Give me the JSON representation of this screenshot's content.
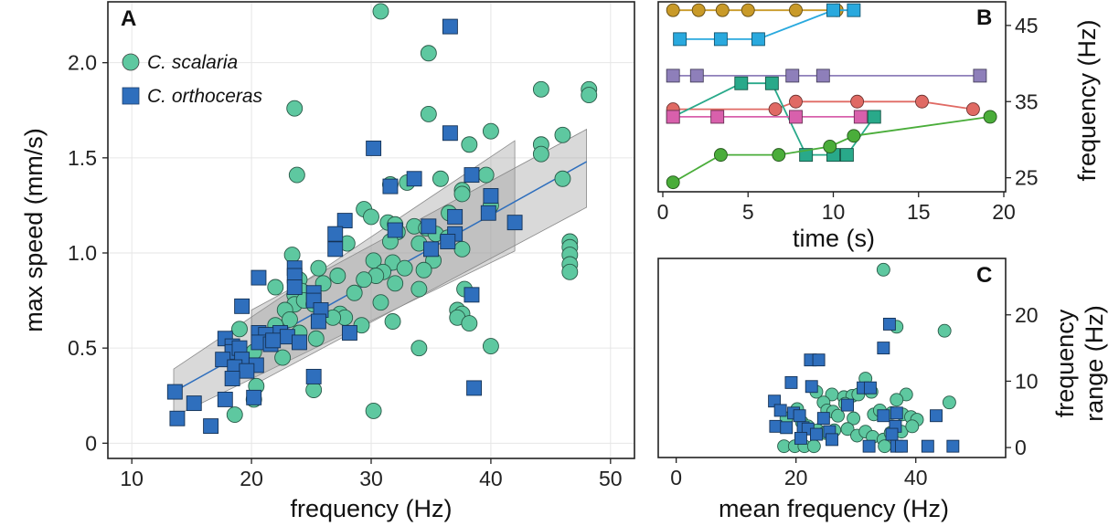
{
  "chart_data": [
    {
      "panel": "A",
      "type": "scatter",
      "xlabel": "frequency (Hz)",
      "ylabel": "max speed (mm/s)",
      "xlim": [
        8,
        52
      ],
      "ylim": [
        -0.08,
        2.32
      ],
      "xticks": [
        10,
        20,
        30,
        40,
        50
      ],
      "yticks": [
        0,
        0.5,
        1.0,
        1.5,
        2.0
      ],
      "ytick_labels": [
        "0",
        "0.5",
        "1.0",
        "1.5",
        "2.0"
      ],
      "legend_position": "top-left",
      "colors": {
        "scalaria": "#5ec8a0",
        "orthoceras": "#2f6fbd",
        "fit": "#2f6fbd",
        "band": "#9a9a9a"
      },
      "series": [
        {
          "name": "C. scalaria",
          "marker": "circle",
          "color": "#5ec8a0",
          "points": [
            [
              30.8,
              2.27
            ],
            [
              34.8,
              2.05
            ],
            [
              44.2,
              1.86
            ],
            [
              48.2,
              1.86
            ],
            [
              48.2,
              1.83
            ],
            [
              23.6,
              1.76
            ],
            [
              34.8,
              1.73
            ],
            [
              40.0,
              1.64
            ],
            [
              46.0,
              1.62
            ],
            [
              44.2,
              1.57
            ],
            [
              38.2,
              1.57
            ],
            [
              44.2,
              1.52
            ],
            [
              23.8,
              1.41
            ],
            [
              39.6,
              1.41
            ],
            [
              46.0,
              1.39
            ],
            [
              35.8,
              1.39
            ],
            [
              33.0,
              1.37
            ],
            [
              31.6,
              1.36
            ],
            [
              37.6,
              1.33
            ],
            [
              37.6,
              1.31
            ],
            [
              40.0,
              1.25
            ],
            [
              29.4,
              1.23
            ],
            [
              36.5,
              1.21
            ],
            [
              30.0,
              1.19
            ],
            [
              31.4,
              1.16
            ],
            [
              32.0,
              1.15
            ],
            [
              33.6,
              1.14
            ],
            [
              34.6,
              1.13
            ],
            [
              32.2,
              1.11
            ],
            [
              35.4,
              1.1
            ],
            [
              36.4,
              1.08
            ],
            [
              31.6,
              1.06
            ],
            [
              34.0,
              1.05
            ],
            [
              28.0,
              1.05
            ],
            [
              46.6,
              1.06
            ],
            [
              46.6,
              1.03
            ],
            [
              37.6,
              1.02
            ],
            [
              23.4,
              0.99
            ],
            [
              46.6,
              0.99
            ],
            [
              30.2,
              0.96
            ],
            [
              35.2,
              0.96
            ],
            [
              31.8,
              0.95
            ],
            [
              46.6,
              0.94
            ],
            [
              25.6,
              0.92
            ],
            [
              34.4,
              0.91
            ],
            [
              32.8,
              0.92
            ],
            [
              31.0,
              0.9
            ],
            [
              27.2,
              0.88
            ],
            [
              30.4,
              0.88
            ],
            [
              46.6,
              0.9
            ],
            [
              24.0,
              0.86
            ],
            [
              29.4,
              0.86
            ],
            [
              32.0,
              0.84
            ],
            [
              22.0,
              0.82
            ],
            [
              26.0,
              0.84
            ],
            [
              24.2,
              0.8
            ],
            [
              23.6,
              0.78
            ],
            [
              37.8,
              0.81
            ],
            [
              34.0,
              0.81
            ],
            [
              28.6,
              0.79
            ],
            [
              23.6,
              0.73
            ],
            [
              24.4,
              0.75
            ],
            [
              25.2,
              0.73
            ],
            [
              30.8,
              0.74
            ],
            [
              22.8,
              0.7
            ],
            [
              27.4,
              0.68
            ],
            [
              27.8,
              0.66
            ],
            [
              37.2,
              0.7
            ],
            [
              37.6,
              0.68
            ],
            [
              26.8,
              0.66
            ],
            [
              23.2,
              0.65
            ],
            [
              31.8,
              0.64
            ],
            [
              37.2,
              0.66
            ],
            [
              38.2,
              0.63
            ],
            [
              29.2,
              0.62
            ],
            [
              22.0,
              0.62
            ],
            [
              19.0,
              0.6
            ],
            [
              24.0,
              0.58
            ],
            [
              25.4,
              0.55
            ],
            [
              22.6,
              0.45
            ],
            [
              40.0,
              0.51
            ],
            [
              34.0,
              0.5
            ],
            [
              20.2,
              0.48
            ],
            [
              20.4,
              0.3
            ],
            [
              25.2,
              0.28
            ],
            [
              20.2,
              0.23
            ],
            [
              18.6,
              0.15
            ],
            [
              30.2,
              0.17
            ]
          ]
        },
        {
          "name": "C. orthoceras",
          "marker": "square",
          "color": "#2f6fbd",
          "points": [
            [
              36.6,
              2.19
            ],
            [
              36.6,
              1.63
            ],
            [
              30.2,
              1.55
            ],
            [
              38.4,
              1.41
            ],
            [
              31.6,
              1.35
            ],
            [
              33.6,
              1.39
            ],
            [
              40.0,
              1.3
            ],
            [
              39.8,
              1.21
            ],
            [
              27.8,
              1.17
            ],
            [
              32.0,
              1.12
            ],
            [
              37.0,
              1.19
            ],
            [
              34.8,
              1.14
            ],
            [
              37.0,
              1.1
            ],
            [
              36.4,
              1.06
            ],
            [
              42.0,
              1.16
            ],
            [
              27.0,
              1.1
            ],
            [
              35.0,
              1.02
            ],
            [
              27.0,
              1.02
            ],
            [
              23.6,
              0.92
            ],
            [
              23.6,
              0.88
            ],
            [
              20.6,
              0.87
            ],
            [
              23.6,
              0.82
            ],
            [
              25.2,
              0.79
            ],
            [
              38.4,
              0.78
            ],
            [
              25.2,
              0.75
            ],
            [
              19.2,
              0.72
            ],
            [
              25.8,
              0.7
            ],
            [
              25.6,
              0.64
            ],
            [
              20.6,
              0.58
            ],
            [
              22.4,
              0.58
            ],
            [
              21.2,
              0.57
            ],
            [
              23.0,
              0.56
            ],
            [
              28.2,
              0.58
            ],
            [
              17.8,
              0.55
            ],
            [
              20.6,
              0.53
            ],
            [
              21.6,
              0.52
            ],
            [
              21.8,
              0.54
            ],
            [
              24.0,
              0.53
            ],
            [
              18.4,
              0.51
            ],
            [
              18.4,
              0.48
            ],
            [
              19.0,
              0.5
            ],
            [
              17.6,
              0.44
            ],
            [
              19.2,
              0.44
            ],
            [
              18.6,
              0.4
            ],
            [
              20.4,
              0.41
            ],
            [
              19.6,
              0.38
            ],
            [
              18.4,
              0.34
            ],
            [
              25.2,
              0.35
            ],
            [
              17.8,
              0.23
            ],
            [
              20.2,
              0.24
            ],
            [
              13.6,
              0.27
            ],
            [
              15.2,
              0.21
            ],
            [
              38.6,
              0.29
            ],
            [
              13.8,
              0.13
            ],
            [
              16.6,
              0.09
            ]
          ]
        }
      ],
      "fit": {
        "x": [
          13.5,
          48.0
        ],
        "y": [
          0.27,
          1.48
        ]
      },
      "bands": [
        {
          "x0": 13.5,
          "x1": 42.0,
          "lo0": 0.14,
          "lo1": 1.01,
          "hi0": 0.39,
          "hi1": 1.59
        },
        {
          "x0": 20.0,
          "x1": 48.0,
          "lo0": 0.3,
          "lo1": 1.24,
          "hi0": 0.7,
          "hi1": 1.65
        }
      ]
    },
    {
      "panel": "B",
      "type": "line",
      "xlabel": "time (s)",
      "ylabel": "frequency (Hz)",
      "xlim": [
        0,
        20
      ],
      "ylim": [
        23.4,
        48.1
      ],
      "xticks": [
        0,
        5,
        10,
        15,
        20
      ],
      "yticks": [
        25,
        35,
        45
      ],
      "series": [
        {
          "name": "s1",
          "marker": "circle",
          "color": "#c99a28",
          "x": [
            0.6,
            2.1,
            3.5,
            5.0,
            7.8,
            10.2
          ],
          "y": [
            47,
            47,
            47,
            47,
            47,
            47
          ]
        },
        {
          "name": "s2",
          "marker": "square",
          "color": "#29a9de",
          "x": [
            1.0,
            3.4,
            5.6,
            10.0,
            11.2
          ],
          "y": [
            43.2,
            43.2,
            43.2,
            47,
            47
          ]
        },
        {
          "name": "s3",
          "marker": "square",
          "color": "#8e7fba",
          "x": [
            0.6,
            2.0,
            7.6,
            9.4,
            18.6
          ],
          "y": [
            38.4,
            38.4,
            38.4,
            38.4,
            38.4
          ]
        },
        {
          "name": "s4",
          "marker": "circle",
          "color": "#e06a64",
          "x": [
            0.6,
            6.6,
            7.8,
            11.4,
            15.2,
            18.2
          ],
          "y": [
            34,
            34,
            35,
            35,
            35,
            34
          ]
        },
        {
          "name": "s5",
          "marker": "square",
          "color": "#29a98a",
          "x": [
            0.6,
            4.6,
            6.4,
            8.4,
            10.0,
            10.8,
            12.4
          ],
          "y": [
            33,
            37.4,
            37.4,
            28,
            28,
            28,
            33
          ]
        },
        {
          "name": "s6",
          "marker": "square",
          "color": "#d860ac",
          "x": [
            0.6,
            3.2,
            7.8,
            11.6
          ],
          "y": [
            33,
            33,
            33,
            33
          ]
        },
        {
          "name": "s7",
          "marker": "circle",
          "color": "#4aad3a",
          "x": [
            0.6,
            3.4,
            6.8,
            9.8,
            11.2,
            19.2
          ],
          "y": [
            24.4,
            28,
            28,
            29.1,
            30.5,
            33
          ]
        }
      ]
    },
    {
      "panel": "C",
      "type": "scatter",
      "xlabel": "mean frequency (Hz)",
      "ylabel": "frequency range (Hz)",
      "ylabel_lines": [
        "frequency",
        "range (Hz)"
      ],
      "xlim": [
        -3,
        55
      ],
      "ylim": [
        -1.5,
        28.5
      ],
      "xticks": [
        0,
        20,
        40
      ],
      "yticks": [
        0,
        10,
        20
      ],
      "series": [
        {
          "name": "C. scalaria",
          "marker": "circle",
          "color": "#5ec8a0",
          "points": [
            [
              34.6,
              26.8
            ],
            [
              36.8,
              18.2
            ],
            [
              44.8,
              17.6
            ],
            [
              31.6,
              10.4
            ],
            [
              23.4,
              8.4
            ],
            [
              26.0,
              8.0
            ],
            [
              28.0,
              7.6
            ],
            [
              29.4,
              7.8
            ],
            [
              30.4,
              8.0
            ],
            [
              32.6,
              8.4
            ],
            [
              38.4,
              8.0
            ],
            [
              45.6,
              6.8
            ],
            [
              36.8,
              7.2
            ],
            [
              24.6,
              6.8
            ],
            [
              28.2,
              6.6
            ],
            [
              20.2,
              5.8
            ],
            [
              25.2,
              5.6
            ],
            [
              26.2,
              5.4
            ],
            [
              27.0,
              4.8
            ],
            [
              29.6,
              4.4
            ],
            [
              33.0,
              5.0
            ],
            [
              34.0,
              5.6
            ],
            [
              36.0,
              5.2
            ],
            [
              37.8,
              5.0
            ],
            [
              39.2,
              4.6
            ],
            [
              40.2,
              4.2
            ],
            [
              18.4,
              4.4
            ],
            [
              21.0,
              3.8
            ],
            [
              22.0,
              3.2
            ],
            [
              23.6,
              2.6
            ],
            [
              24.8,
              2.2
            ],
            [
              26.4,
              2.6
            ],
            [
              28.6,
              2.8
            ],
            [
              30.2,
              1.8
            ],
            [
              31.6,
              2.4
            ],
            [
              32.8,
              1.6
            ],
            [
              34.6,
              1.2
            ],
            [
              35.8,
              2.2
            ],
            [
              37.6,
              2.4
            ],
            [
              39.4,
              3.2
            ],
            [
              18.0,
              0.2
            ],
            [
              19.8,
              0.2
            ],
            [
              21.4,
              0.2
            ],
            [
              23.0,
              0.2
            ],
            [
              34.8,
              0.2
            ]
          ]
        },
        {
          "name": "C. orthoceras",
          "marker": "square",
          "color": "#2f6fbd",
          "points": [
            [
              35.6,
              18.6
            ],
            [
              34.6,
              15.0
            ],
            [
              22.4,
              13.2
            ],
            [
              23.8,
              13.2
            ],
            [
              19.2,
              9.8
            ],
            [
              22.6,
              9.2
            ],
            [
              31.2,
              9.0
            ],
            [
              32.4,
              9.0
            ],
            [
              16.4,
              7.0
            ],
            [
              28.6,
              6.4
            ],
            [
              17.4,
              5.6
            ],
            [
              19.6,
              5.2
            ],
            [
              20.6,
              4.8
            ],
            [
              24.6,
              4.4
            ],
            [
              34.6,
              4.8
            ],
            [
              36.8,
              5.2
            ],
            [
              43.4,
              4.8
            ],
            [
              36.6,
              3.2
            ],
            [
              16.6,
              3.2
            ],
            [
              18.4,
              3.0
            ],
            [
              21.2,
              3.0
            ],
            [
              22.0,
              2.8
            ],
            [
              23.4,
              2.0
            ],
            [
              25.6,
              2.4
            ],
            [
              36.0,
              2.0
            ],
            [
              20.8,
              1.4
            ],
            [
              26.0,
              1.2
            ],
            [
              32.2,
              0.2
            ],
            [
              36.8,
              0.2
            ],
            [
              37.6,
              0.2
            ],
            [
              42.0,
              0.2
            ],
            [
              46.2,
              0.2
            ]
          ]
        }
      ]
    }
  ]
}
